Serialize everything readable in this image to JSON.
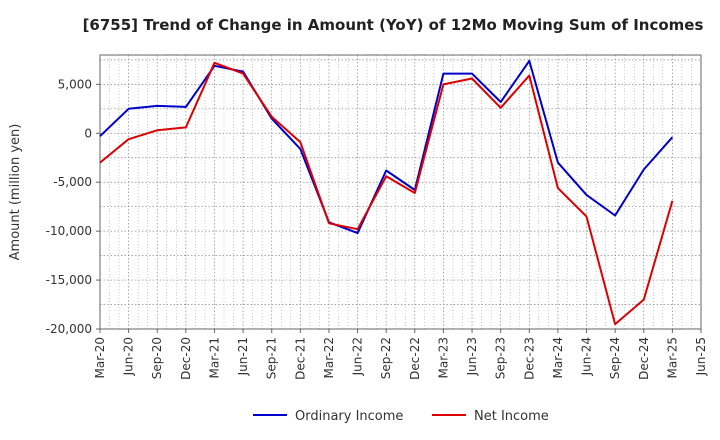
{
  "chart_data": {
    "type": "line",
    "title": "[6755]  Trend of Change in Amount (YoY) of 12Mo Moving Sum of Incomes",
    "ylabel": "Amount (million yen)",
    "xlabel": "",
    "ylim": [
      -20000,
      8000
    ],
    "yticks": [
      5000,
      0,
      -5000,
      -10000,
      -15000,
      -20000
    ],
    "ytick_labels": [
      "5,000",
      "0",
      "-5,000",
      "-10,000",
      "-15,000",
      "-20,000"
    ],
    "x_labels": [
      "Mar-20",
      "Jun-20",
      "Sep-20",
      "Dec-20",
      "Mar-21",
      "Jun-21",
      "Sep-21",
      "Dec-21",
      "Mar-22",
      "Jun-22",
      "Sep-22",
      "Dec-22",
      "Mar-23",
      "Jun-23",
      "Sep-23",
      "Dec-23",
      "Mar-24",
      "Jun-24",
      "Sep-24",
      "Dec-24",
      "Mar-25",
      "Jun-25"
    ],
    "grid": true,
    "legend_position": "bottom-center",
    "series": [
      {
        "name": "Ordinary Income",
        "color": "#0000cc",
        "values": [
          -300,
          2500,
          2800,
          2700,
          6900,
          6300,
          1500,
          -1600,
          -9100,
          -10200,
          -3800,
          -5800,
          6100,
          6100,
          3200,
          7400,
          -3000,
          -6300,
          -8400,
          -3700,
          -400
        ]
      },
      {
        "name": "Net Income",
        "color": "#dd0000",
        "values": [
          -3000,
          -600,
          300,
          600,
          7200,
          6100,
          1700,
          -900,
          -9200,
          -9800,
          -4400,
          -6100,
          5000,
          5600,
          2600,
          5900,
          -5600,
          -8500,
          -19500,
          -17000,
          -6900
        ]
      }
    ]
  }
}
